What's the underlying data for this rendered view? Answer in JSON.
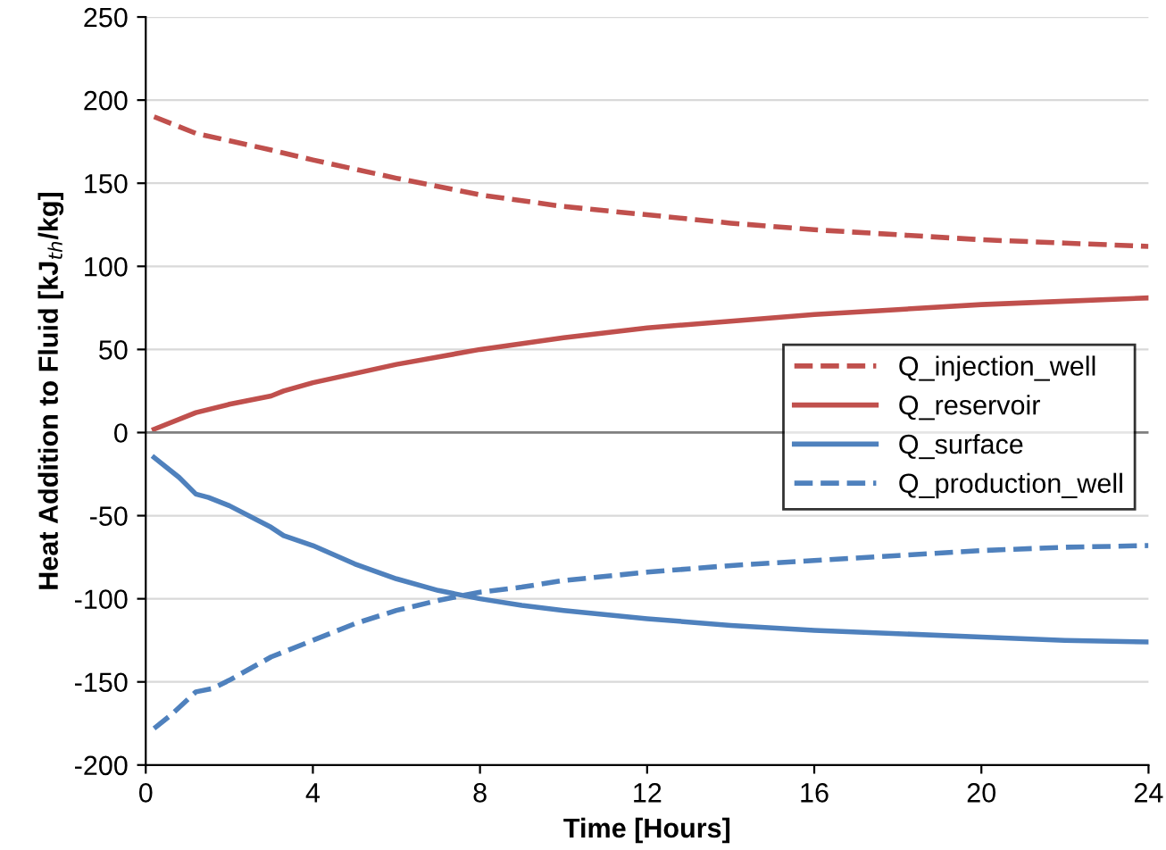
{
  "chart_data": {
    "type": "line",
    "xlabel": "Time [Hours]",
    "ylabel": "Heat Addition to Fluid [kJ$_{th}$/kg]",
    "xlim": [
      0,
      24
    ],
    "xticks": [
      0,
      4,
      8,
      12,
      16,
      20,
      24
    ],
    "ylim": [
      -200,
      250
    ],
    "yticks": [
      -200,
      -150,
      -100,
      -50,
      0,
      50,
      100,
      150,
      200,
      250
    ],
    "grid": "y",
    "legend": "right",
    "marker": "none",
    "series": [
      {
        "name": "Q_injection_well",
        "color": "#c0504d",
        "line_style": "dashed",
        "x": [
          0.2,
          1.2,
          3,
          4,
          6,
          8,
          10,
          12,
          14,
          16,
          18,
          20,
          22,
          24
        ],
        "values": [
          190,
          180,
          170,
          164,
          153,
          143,
          136,
          131,
          126,
          122,
          119,
          116,
          114,
          112
        ]
      },
      {
        "name": "Q_reservoir",
        "color": "#c0504d",
        "line_style": "solid",
        "x": [
          0.2,
          1.2,
          2,
          3,
          3.3,
          4,
          6,
          8,
          10,
          12,
          14,
          16,
          18,
          20,
          22,
          24
        ],
        "values": [
          2,
          12,
          17,
          22,
          25,
          30,
          41,
          50,
          57,
          63,
          67,
          71,
          74,
          77,
          79,
          81
        ]
      },
      {
        "name": "Q_surface",
        "color": "#4f81bd",
        "line_style": "solid",
        "x": [
          0.2,
          0.8,
          1.2,
          1.5,
          2,
          3,
          3.3,
          4,
          5,
          6,
          7,
          8,
          9,
          10,
          12,
          14,
          16,
          18,
          20,
          22,
          24
        ],
        "values": [
          -15,
          -27,
          -37,
          -39,
          -44,
          -57,
          -62,
          -68,
          -79,
          -88,
          -95,
          -100,
          -104,
          -107,
          -112,
          -116,
          -119,
          -121,
          -123,
          -125,
          -126
        ]
      },
      {
        "name": "Q_production_well",
        "color": "#4f81bd",
        "line_style": "dashed",
        "x": [
          0.2,
          0.6,
          1.2,
          1.6,
          2,
          3,
          4,
          5,
          6,
          7,
          8,
          9,
          10,
          12,
          14,
          16,
          18,
          20,
          22,
          24
        ],
        "values": [
          -178,
          -170,
          -156,
          -154,
          -149,
          -135,
          -125,
          -115,
          -107,
          -101,
          -96,
          -93,
          -89,
          -84,
          -80,
          -77,
          -74,
          -71,
          -69,
          -68
        ]
      }
    ]
  }
}
